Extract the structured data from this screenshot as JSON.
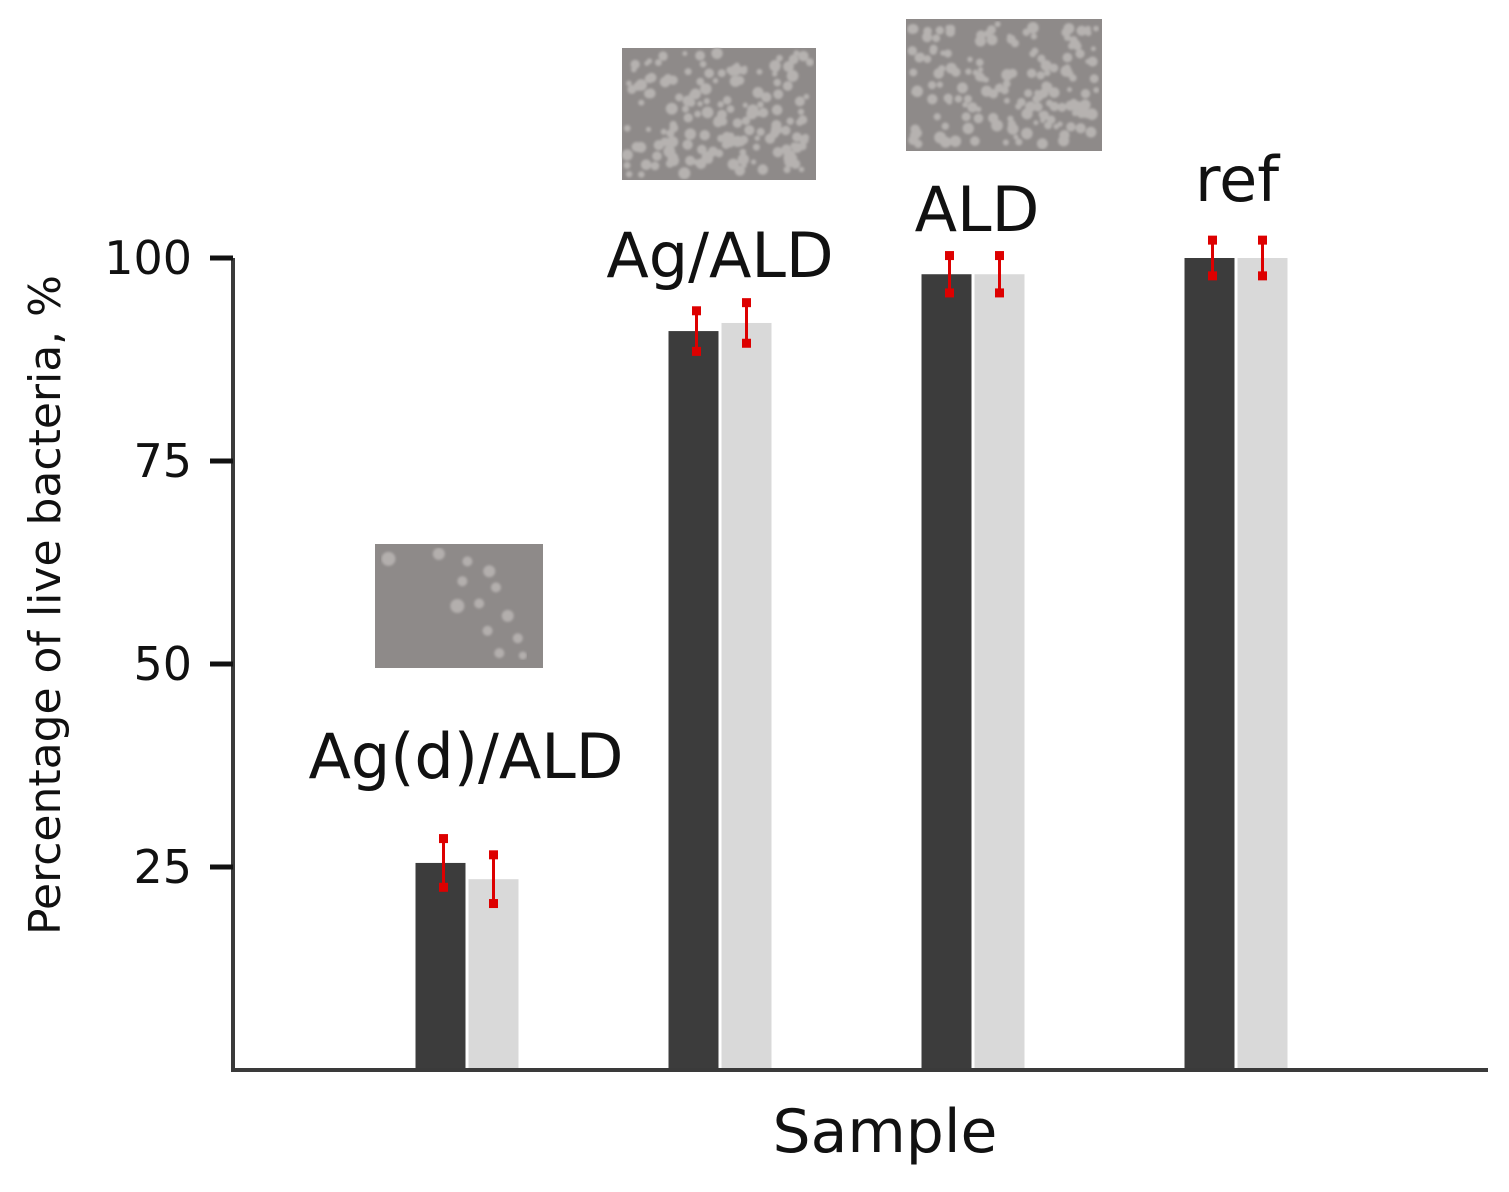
{
  "chart_data": {
    "type": "bar",
    "xlabel": "Sample",
    "ylabel": "Percentage of live bacteria, %",
    "ylim": [
      0,
      100
    ],
    "yticks": [
      25,
      50,
      75,
      100
    ],
    "grid": false,
    "legend": "none",
    "categories": [
      "Ag(d)/ALD",
      "Ag/ALD",
      "ALD",
      "ref"
    ],
    "series": [
      {
        "color": "#3c3c3c",
        "values": [
          25.5,
          91,
          98,
          100
        ],
        "errors": [
          3,
          2.5,
          2.3,
          2.2
        ]
      },
      {
        "color": "#d9d9d9",
        "values": [
          23.5,
          92,
          98,
          100
        ],
        "errors": [
          3,
          2.5,
          2.3,
          2.2
        ]
      }
    ],
    "error_bar_color": "#dd0000",
    "annotations": [
      {
        "kind": "plate-photo",
        "category": "Ag(d)/ALD",
        "colony_density": "sparse"
      },
      {
        "kind": "plate-photo",
        "category": "Ag/ALD",
        "colony_density": "dense"
      },
      {
        "kind": "plate-photo",
        "category": "ALD",
        "colony_density": "dense"
      }
    ]
  }
}
